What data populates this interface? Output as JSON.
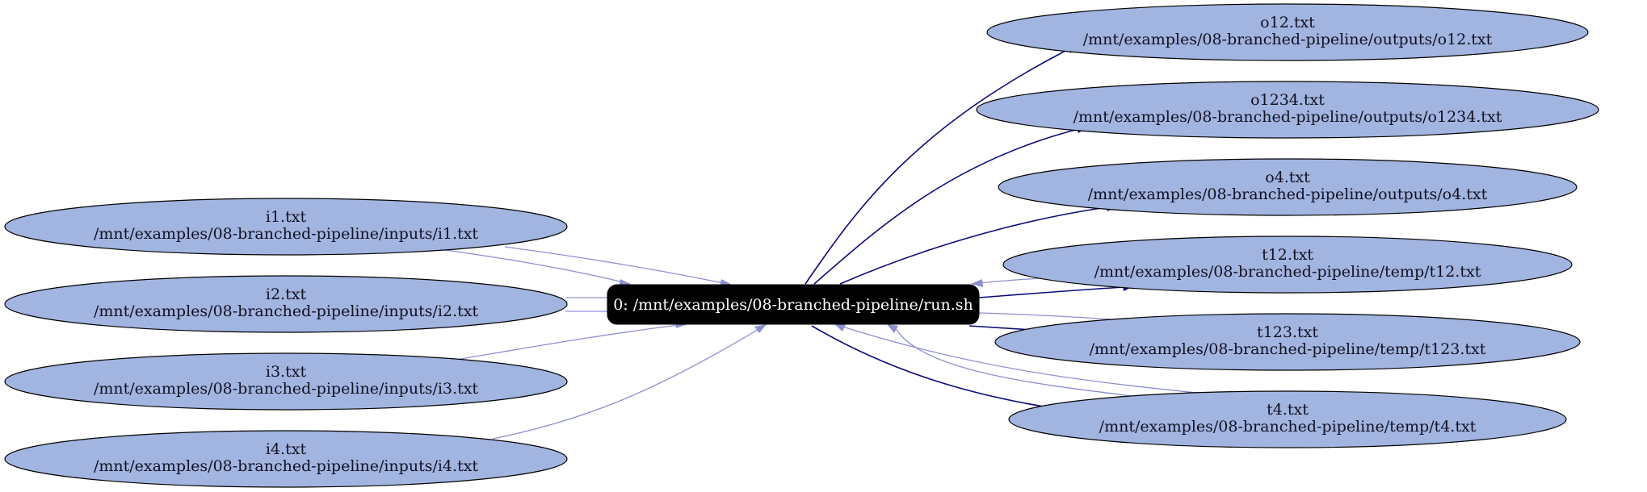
{
  "process": {
    "label": "0: /mnt/examples/08-branched-pipeline/run.sh"
  },
  "inputs": [
    {
      "name": "i1.txt",
      "path": "/mnt/examples/08-branched-pipeline/inputs/i1.txt"
    },
    {
      "name": "i2.txt",
      "path": "/mnt/examples/08-branched-pipeline/inputs/i2.txt"
    },
    {
      "name": "i3.txt",
      "path": "/mnt/examples/08-branched-pipeline/inputs/i3.txt"
    },
    {
      "name": "i4.txt",
      "path": "/mnt/examples/08-branched-pipeline/inputs/i4.txt"
    }
  ],
  "outputs": [
    {
      "name": "o12.txt",
      "path": "/mnt/examples/08-branched-pipeline/outputs/o12.txt"
    },
    {
      "name": "o1234.txt",
      "path": "/mnt/examples/08-branched-pipeline/outputs/o1234.txt"
    },
    {
      "name": "o4.txt",
      "path": "/mnt/examples/08-branched-pipeline/outputs/o4.txt"
    },
    {
      "name": "t12.txt",
      "path": "/mnt/examples/08-branched-pipeline/temp/t12.txt"
    },
    {
      "name": "t123.txt",
      "path": "/mnt/examples/08-branched-pipeline/temp/t123.txt"
    },
    {
      "name": "t4.txt",
      "path": "/mnt/examples/08-branched-pipeline/temp/t4.txt"
    }
  ],
  "colors": {
    "node_fill": "#a2b4e0",
    "process_fill": "#000000",
    "read_edge": "#8c8fd0",
    "write_edge": "#0b0b7a"
  }
}
